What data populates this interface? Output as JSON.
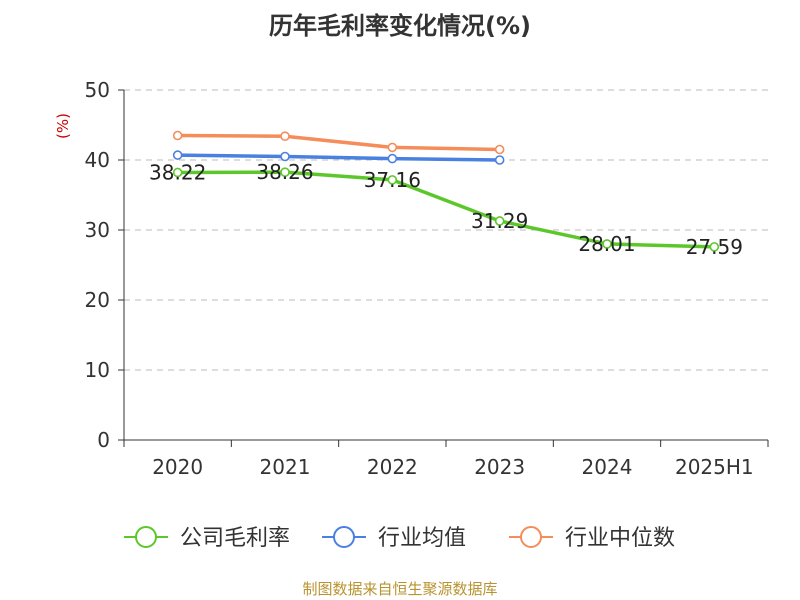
{
  "chart_data": {
    "type": "line",
    "title": "历年毛利率变化情况(%)",
    "y_unit": "(%)",
    "categories": [
      "2020",
      "2021",
      "2022",
      "2023",
      "2024",
      "2025H1"
    ],
    "ylim": [
      0,
      50
    ],
    "yticks": [
      0,
      10,
      20,
      30,
      40,
      50
    ],
    "grid": true,
    "legend_position": "bottom",
    "series": [
      {
        "name": "公司毛利率",
        "color": "#5cc72a",
        "values": [
          38.22,
          38.26,
          37.16,
          31.29,
          28.01,
          27.59
        ],
        "labels": [
          "38.22",
          "38.26",
          "37.16",
          "31.29",
          "28.01",
          "27.59"
        ]
      },
      {
        "name": "行业均值",
        "color": "#4a80e0",
        "values": [
          40.7,
          40.5,
          40.2,
          40.0,
          null,
          null
        ]
      },
      {
        "name": "行业中位数",
        "color": "#f58d5a",
        "values": [
          43.5,
          43.4,
          41.8,
          41.5,
          null,
          null
        ]
      }
    ]
  },
  "source": "制图数据来自恒生聚源数据库"
}
